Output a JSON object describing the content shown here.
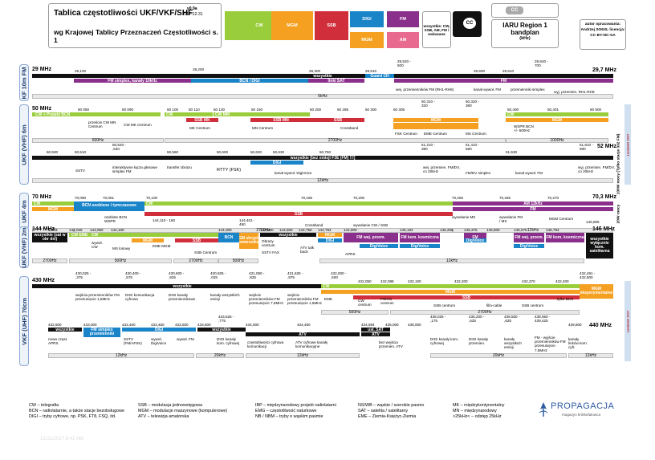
{
  "header": {
    "title": "Tablica częstotliwości UKF/VKF/SHF",
    "subtitle": "wg Krajowej Tablicy Przeznaczeń Częstotliwości s. 1",
    "version": "v0.9a",
    "date": "2017-12-31",
    "legend": {
      "cw": "CW",
      "mgm": "MGM",
      "ssb": "SSB",
      "digi": "DIGI",
      "fm": "FM",
      "am": "AM",
      "all": "wszystkie: CW, SSB, AM, FM i wskazane"
    },
    "iaru_title": "IARU Region 1 bandplan",
    "iaru_unit": "(kHz)",
    "author": "autor opracowania: Andrzej SO6XL licencja: CC BY-NC-SA",
    "cc_badge": "CC"
  },
  "colors": {
    "cw": "#9acd3c",
    "mgm": "#f5a020",
    "ssb": "#d02e3a",
    "digi": "#1a84c9",
    "fm": "#8a2f8b",
    "am": "#e86a8e",
    "all": "#111111"
  },
  "bands": {
    "b10": {
      "side": "KF 10m FM",
      "start": "29 MHz",
      "end": "29,7 MHz",
      "ticks": [
        "29,100",
        "29,200",
        "29,300",
        "29,510",
        "29,520 - 500",
        "29,600",
        "29,610",
        "29,620 - 700"
      ],
      "all": "wszystkie",
      "fm_simplex": "FM simplex, kanały 10kHz",
      "beacon": "BCN / DIGI",
      "sat": "linki SAT",
      "guard": "Guard CH",
      "fm": "FM",
      "rep_in": "wej. przemienników FM (RH1-RH8)",
      "fm_call": "kanał wywoł. FM",
      "fm_simplex2": "przemienniki simplex",
      "rep_out": "wyj. przemien. RH1-RH8",
      "bw": "6kHz"
    },
    "b6": {
      "side": "UKF (VHF) 6m",
      "start": "50 MHz",
      "end": "52 MHz",
      "ticks1": [
        "50 050",
        "50 090",
        "50 100",
        "50 110",
        "50 130",
        "50 150",
        "50 200",
        "50 285",
        "50 300",
        "50 305",
        "50,310 - 320",
        "50,320 - 380",
        "50,400",
        "50,401",
        "50 500"
      ],
      "cw_bcn": "CW + Projekt BCN",
      "cw": "CW",
      "cw2": "CW MM",
      "ssb_mk": "SSB MK",
      "ssb_mn": "SSB MN",
      "ssb": "SSB",
      "mgm": "MGM",
      "mgm2": "MGM",
      "cw3": "CW",
      "labels1": [
        "przeście CW MN Centrum",
        "CW MK Centrum",
        "MK Centrum",
        "MN Centrum",
        "Crossband",
        "FSK Centrum",
        "EME Centrum",
        "MS Centrum",
        "WSPR BCN +/- 500Hz"
      ],
      "bw1": [
        "500Hz",
        "2700Hz",
        "1000Hz"
      ],
      "ticks2": [
        "50,500",
        "50,510",
        "50,520 - ,540",
        "50,560",
        "50,600",
        "50,620",
        "50,630",
        "50,750",
        "51,210 - 390",
        "51,410 - 590",
        "51,530",
        "51,810 - 990"
      ],
      "all": "wszystkie [bez emisji F3E (FM) !!!]",
      "digi": "DIGI",
      "labels2": [
        "SSTV",
        "interaktywne łącza głosowe simplex FM",
        "transfer obrazu",
        "RTTY (FSK)",
        "kanał wywoł. DigiVoice",
        "wej. przemien. FM/DV, co 20kHz",
        "FM/DV simplex",
        "kanał wywoł. FM",
        "wyj. przemien. FM/DV, co 20kHz"
      ],
      "bw2": "12kHz",
      "power": "100W mocy (Tylko stacje 3x2 FM)",
      "note": "Landahel 2017"
    },
    "b4": {
      "side": "UKF 4m",
      "start": "70 MHz",
      "end": "70,3 MHz",
      "ticks": [
        "70,090",
        "70,051",
        "70,100",
        "70,185",
        "70,200",
        "70,250",
        "70,265",
        "70,270"
      ],
      "cw": "CW",
      "mgm": "MGM",
      "bcn": "BCN osobisne i tymczasowe",
      "cw2": "CW",
      "ssb": "SSB",
      "am": "AM 12kHz",
      "fm": "FM",
      "labels": [
        "osobiste BCN WSPR",
        "Crossband",
        "wywołanie CW / SSB",
        "wywołanie MS",
        "wywołanie FM / MS",
        "MGM Centrum"
      ],
      "bw": [
        "1kHz",
        "2700Hz",
        "12kHz"
      ],
      "power": "20W mocy"
    },
    "b2": {
      "side": "UKF (VHF) 2m",
      "start": "144 MHz",
      "end": "146 MHz",
      "ticks": [
        "144,025",
        "144,050",
        "144,100",
        "144,110 - 160",
        "144,300",
        "144,401 - 490",
        "144,500",
        "144,600",
        "144,750",
        "144,794",
        "144,800",
        "145,194",
        "145,206",
        "145,375",
        "145,500",
        "145,575",
        "145,794",
        "145,806"
      ],
      "all": "wszystkie (sat w obr del)",
      "cw_eme": "CW EME",
      "cw": "CW",
      "mgm": "MGM",
      "ssb": "SSB",
      "bcn": "BCN",
      "mgm_sat": "MGM skrypty i przemiennikowe",
      "all2": "wszystkie",
      "mgm2": "MGM",
      "digi": "DIGI",
      "fm_rep": "FM wej. przem.",
      "fm_space": "FM kom. kosmiczna",
      "fm3": "FM",
      "fm_rep2": "FM wej. przem.",
      "fm_space2": "FM kom. kosmiczna",
      "all3": "wszystkie wyłącznie kom. satelitarna",
      "dv": [
        "DigiVoice",
        "DigiVoice",
        "DigiVoice",
        "DigiVoice"
      ],
      "labels": [
        "wywoł. CW",
        "MS losowy",
        "EME MGM",
        "SSB Centrum",
        "Obrazy centrum",
        "SSTV FAX",
        "ATV talk back",
        "APRS"
      ],
      "bw": [
        "2700Hz",
        "500Hz",
        "2700Hz",
        "500Hz",
        "12kHz"
      ]
    },
    "b70": {
      "side": "VKF (UHF) 70cm",
      "start": "430 MHz",
      "end": "440 MHz",
      "ticks1": [
        "430,025 - ,375",
        "430,400 - ,575",
        "430,600 - ,925",
        "430,925 - ,025",
        "431,050 - ,825",
        "431,625 - ,975",
        "432,000 - ,500",
        "432,050",
        "432,088",
        "432,100",
        "432,200",
        "432,370",
        "432,400",
        "432,491 - 432,500"
      ],
      "all": "wszystkie",
      "cw": "CW",
      "mgm": "MGM",
      "ssb": "SSB",
      "mgm_sat": "MGM eksperymentalne",
      "labels1": [
        "wejścia przemienników FM przesunięcie 1,6MHz",
        "DIGI komunikacja cyfrowa",
        "DIGI kanały przemiennikowe",
        "kanały wszystkich emisji",
        "wejście przemienników FM przesunięcie 7,6MHz",
        "wejście przemienników FM przesunięcie 1,6MHz",
        "EME",
        "CW centrum",
        "PSK31 centrum",
        "SSB centrum",
        "fillo-cable",
        "SSB centrum",
        "tylko BCN"
      ],
      "bw1": [
        "500Hz",
        "2700Hz"
      ],
      "ticks2": [
        "432,500",
        "433,000",
        "433,400",
        "433,450",
        "433,500",
        "433,600",
        "433,625 - ,775",
        "434,000",
        "434,450",
        "434,594",
        "435,000",
        "438,000",
        "438,025 - ,175",
        "438,200 - ,525",
        "438,550 - ,625",
        "438,650 - 439,425",
        "439,800",
        "440 MHz"
      ],
      "all2": "wszystkie",
      "fm": "FM simplex przemienniki",
      "digi": "DIGI",
      "all3": "wszystkie",
      "atv": "ATV",
      "usl_sat": "usł. SAT",
      "atv2": "ATV",
      "labels2": [
        "nowa częst. APRS",
        "SSTV (FM/AFSK)",
        "wywoł. DigiVoice",
        "wywoł. FM",
        "DIGI kanały kom. cyfrowej",
        "częstotliwości cyfrowa komunikacji",
        "ATV cyfrowe kanały komunikacyjne",
        "bez wejścia przemien. ATV",
        "DIGI kanały kom. cyfrowej",
        "DIGI kanały przemien.",
        "kanały wszystkich emisji",
        "FM - wyjście przemienników FM przesunięcie 7,6MHz",
        "kanały linków kom. cyfr."
      ],
      "bw2": [
        "12kHz",
        "20kHz",
        "12kHz",
        "20kHz",
        "12kHz"
      ],
      "note": "Landahel 2017"
    }
  },
  "footer": {
    "col1": [
      "CW – telegrafia",
      "BCN – radiolatarnie, a także stacje bezobsługowe",
      "DIGI – tryby cyfrowe, np. PSK, FT8, FSQ, itd."
    ],
    "col2": [
      "SSB – modulacja jednowstęgowa",
      "MGM – modulacje maszynowe (komputerowe)",
      "ATV – telewizja amatorska"
    ],
    "col3": [
      "IBP – międzynarodowy projekt radiolatarni",
      "EMG – częstotliwość naturkowe",
      "NB / NBM – tryby o wąskim pasmie"
    ],
    "col4": [
      "NS/WB – wąskie / szerokie pasmo",
      "SAT – satelita / satelitarny",
      "EME – Ziemia-Księżyc-Ziemia"
    ],
    "col5": [
      "MK – międzykontynentalny",
      "MN – międzynarodowy",
      ">25kHz< – odstęp 25kHz"
    ],
    "brand": "PROPAGACJA",
    "brand_sub": "magazyn krótkofalowca",
    "timestamp": "12/31/2017 8:41 AM"
  }
}
